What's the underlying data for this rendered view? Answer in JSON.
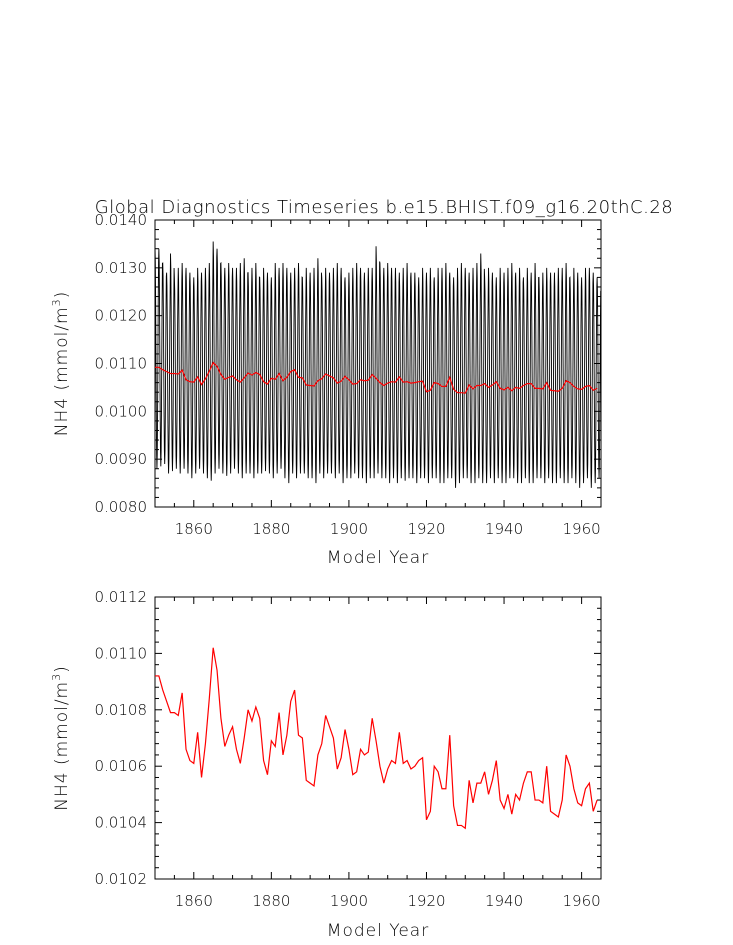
{
  "title": "Global Diagnostics Timeseries b.e15.BHIST.f09_g16.20thC.28",
  "chart_data": [
    {
      "type": "line",
      "xlabel": "Model Year",
      "ylabel_main": "NH4 (mmol/m",
      "ylabel_sup": "3",
      "ylabel_end": ")",
      "xlim": [
        1850,
        1965
      ],
      "ylim": [
        0.008,
        0.014
      ],
      "xticks": [
        "1860",
        "1880",
        "1900",
        "1920",
        "1940",
        "1960"
      ],
      "xtick_values": [
        1860,
        1880,
        1900,
        1920,
        1940,
        1960
      ],
      "yticks": [
        "0.0080",
        "0.0090",
        "0.0100",
        "0.0110",
        "0.0120",
        "0.0130",
        "0.0140"
      ],
      "ytick_values": [
        0.008,
        0.009,
        0.01,
        0.011,
        0.012,
        0.013,
        0.014
      ],
      "series": [
        {
          "kind": "monthly",
          "color": "#000000",
          "start_year": 1850,
          "annual_max": [
            0.01345,
            0.0134,
            0.0131,
            0.0129,
            0.0133,
            0.0128,
            0.013,
            0.0131,
            0.013,
            0.0129,
            0.0128,
            0.013,
            0.0129,
            0.013,
            0.0131,
            0.01355,
            0.0134,
            0.0131,
            0.013,
            0.0131,
            0.013,
            0.013,
            0.0131,
            0.0132,
            0.0129,
            0.013,
            0.0131,
            0.0128,
            0.013,
            0.0129,
            0.0128,
            0.0131,
            0.013,
            0.0131,
            0.013,
            0.0129,
            0.013,
            0.0131,
            0.0128,
            0.013,
            0.0129,
            0.013,
            0.0132,
            0.0128,
            0.013,
            0.0129,
            0.013,
            0.0131,
            0.013,
            0.0128,
            0.0129,
            0.013,
            0.0131,
            0.013,
            0.0129,
            0.013,
            0.013,
            0.01345,
            0.0131,
            0.013,
            0.0131,
            0.013,
            0.013,
            0.0129,
            0.013,
            0.0131,
            0.0129,
            0.0129,
            0.0128,
            0.013,
            0.0129,
            0.013,
            0.0128,
            0.013,
            0.013,
            0.0131,
            0.0129,
            0.0128,
            0.013,
            0.0131,
            0.013,
            0.0129,
            0.013,
            0.0131,
            0.0133,
            0.0128,
            0.013,
            0.0129,
            0.0128,
            0.013,
            0.0129,
            0.013,
            0.0131,
            0.0129,
            0.013,
            0.0128,
            0.013,
            0.0129,
            0.0131,
            0.0128,
            0.0129,
            0.013,
            0.0129,
            0.0129,
            0.013,
            0.013,
            0.0131,
            0.0128,
            0.013,
            0.0129,
            0.0128,
            0.013,
            0.013,
            0.0129,
            0.0128
          ],
          "annual_min": [
            0.0088,
            0.00885,
            0.0089,
            0.0087,
            0.00875,
            0.0088,
            0.0087,
            0.0088,
            0.0087,
            0.0086,
            0.0087,
            0.0088,
            0.0087,
            0.0086,
            0.00855,
            0.0087,
            0.0088,
            0.0087,
            0.00865,
            0.0087,
            0.0088,
            0.0087,
            0.0086,
            0.0087,
            0.0087,
            0.0086,
            0.0087,
            0.0087,
            0.00875,
            0.0087,
            0.0086,
            0.0087,
            0.0088,
            0.0086,
            0.0085,
            0.0087,
            0.0086,
            0.0087,
            0.0087,
            0.0086,
            0.0086,
            0.0085,
            0.0087,
            0.0086,
            0.0087,
            0.0087,
            0.0086,
            0.0087,
            0.0085,
            0.0086,
            0.0086,
            0.0087,
            0.0086,
            0.0086,
            0.0085,
            0.0086,
            0.0086,
            0.0087,
            0.0086,
            0.0086,
            0.0085,
            0.0086,
            0.0085,
            0.0086,
            0.00855,
            0.0086,
            0.0086,
            0.0085,
            0.0086,
            0.0086,
            0.0085,
            0.0086,
            0.0086,
            0.0085,
            0.0085,
            0.0086,
            0.0086,
            0.0084,
            0.0085,
            0.0086,
            0.0086,
            0.0085,
            0.0085,
            0.0086,
            0.0085,
            0.0085,
            0.0086,
            0.0085,
            0.0086,
            0.0085,
            0.0085,
            0.0086,
            0.0086,
            0.0085,
            0.0085,
            0.0086,
            0.0085,
            0.0085,
            0.0086,
            0.0086,
            0.0085,
            0.0086,
            0.0085,
            0.0085,
            0.0086,
            0.0085,
            0.0085,
            0.0086,
            0.0085,
            0.0084,
            0.0085,
            0.0086,
            0.0084,
            0.0085,
            0.0086
          ]
        },
        {
          "kind": "annual",
          "color": "#ff0000",
          "x": [
            1850,
            1851,
            1852,
            1853,
            1854,
            1855,
            1856,
            1857,
            1858,
            1859,
            1860,
            1861,
            1862,
            1863,
            1864,
            1865,
            1866,
            1867,
            1868,
            1869,
            1870,
            1871,
            1872,
            1873,
            1874,
            1875,
            1876,
            1877,
            1878,
            1879,
            1880,
            1881,
            1882,
            1883,
            1884,
            1885,
            1886,
            1887,
            1888,
            1889,
            1890,
            1891,
            1892,
            1893,
            1894,
            1895,
            1896,
            1897,
            1898,
            1899,
            1900,
            1901,
            1902,
            1903,
            1904,
            1905,
            1906,
            1907,
            1908,
            1909,
            1910,
            1911,
            1912,
            1913,
            1914,
            1915,
            1916,
            1917,
            1918,
            1919,
            1920,
            1921,
            1922,
            1923,
            1924,
            1925,
            1926,
            1927,
            1928,
            1929,
            1930,
            1931,
            1932,
            1933,
            1934,
            1935,
            1936,
            1937,
            1938,
            1939,
            1940,
            1941,
            1942,
            1943,
            1944,
            1945,
            1946,
            1947,
            1948,
            1949,
            1950,
            1951,
            1952,
            1953,
            1954,
            1955,
            1956,
            1957,
            1958,
            1959,
            1960,
            1961,
            1962,
            1963,
            1964
          ],
          "y": [
            0.01092,
            0.01092,
            0.01087,
            0.01083,
            0.01079,
            0.01079,
            0.01078,
            0.01086,
            0.01066,
            0.01062,
            0.01061,
            0.01072,
            0.01056,
            0.01068,
            0.01084,
            0.01102,
            0.01094,
            0.01077,
            0.01067,
            0.01071,
            0.01074,
            0.01066,
            0.01061,
            0.0107,
            0.0108,
            0.01076,
            0.01081,
            0.01077,
            0.01062,
            0.01057,
            0.01069,
            0.01067,
            0.01079,
            0.01064,
            0.01071,
            0.01083,
            0.01087,
            0.01071,
            0.0107,
            0.01055,
            0.01054,
            0.01053,
            0.01064,
            0.01068,
            0.01078,
            0.01074,
            0.0107,
            0.01059,
            0.01063,
            0.01073,
            0.01066,
            0.01057,
            0.01058,
            0.01066,
            0.01064,
            0.01065,
            0.01077,
            0.01069,
            0.0106,
            0.01054,
            0.01059,
            0.01062,
            0.01061,
            0.01072,
            0.01061,
            0.01062,
            0.01059,
            0.0106,
            0.01062,
            0.01063,
            0.01041,
            0.01044,
            0.0106,
            0.01058,
            0.01052,
            0.01052,
            0.01071,
            0.01046,
            0.01039,
            0.01039,
            0.01038,
            0.01055,
            0.01047,
            0.01054,
            0.01054,
            0.01058,
            0.0105,
            0.01055,
            0.01062,
            0.01048,
            0.01045,
            0.0105,
            0.01043,
            0.0105,
            0.01048,
            0.01054,
            0.01058,
            0.01058,
            0.01048,
            0.01048,
            0.01047,
            0.0106,
            0.01044,
            0.01043,
            0.01042,
            0.01048,
            0.01064,
            0.0106,
            0.01052,
            0.01047,
            0.01046,
            0.01052,
            0.01054,
            0.01044,
            0.01048
          ]
        }
      ]
    },
    {
      "type": "line",
      "xlabel": "Model Year",
      "ylabel_main": "NH4 (mmol/m",
      "ylabel_sup": "3",
      "ylabel_end": ")",
      "xlim": [
        1850,
        1965
      ],
      "ylim": [
        0.0102,
        0.0112
      ],
      "xticks": [
        "1860",
        "1880",
        "1900",
        "1920",
        "1940",
        "1960"
      ],
      "xtick_values": [
        1860,
        1880,
        1900,
        1920,
        1940,
        1960
      ],
      "yticks": [
        "0.0102",
        "0.0104",
        "0.0106",
        "0.0108",
        "0.0110",
        "0.0112"
      ],
      "ytick_values": [
        0.0102,
        0.0104,
        0.0106,
        0.0108,
        0.011,
        0.0112
      ],
      "series": [
        {
          "kind": "annual",
          "color": "#ff0000",
          "x": [
            1850,
            1851,
            1852,
            1853,
            1854,
            1855,
            1856,
            1857,
            1858,
            1859,
            1860,
            1861,
            1862,
            1863,
            1864,
            1865,
            1866,
            1867,
            1868,
            1869,
            1870,
            1871,
            1872,
            1873,
            1874,
            1875,
            1876,
            1877,
            1878,
            1879,
            1880,
            1881,
            1882,
            1883,
            1884,
            1885,
            1886,
            1887,
            1888,
            1889,
            1890,
            1891,
            1892,
            1893,
            1894,
            1895,
            1896,
            1897,
            1898,
            1899,
            1900,
            1901,
            1902,
            1903,
            1904,
            1905,
            1906,
            1907,
            1908,
            1909,
            1910,
            1911,
            1912,
            1913,
            1914,
            1915,
            1916,
            1917,
            1918,
            1919,
            1920,
            1921,
            1922,
            1923,
            1924,
            1925,
            1926,
            1927,
            1928,
            1929,
            1930,
            1931,
            1932,
            1933,
            1934,
            1935,
            1936,
            1937,
            1938,
            1939,
            1940,
            1941,
            1942,
            1943,
            1944,
            1945,
            1946,
            1947,
            1948,
            1949,
            1950,
            1951,
            1952,
            1953,
            1954,
            1955,
            1956,
            1957,
            1958,
            1959,
            1960,
            1961,
            1962,
            1963,
            1964
          ],
          "y": [
            0.01092,
            0.01092,
            0.01087,
            0.01083,
            0.01079,
            0.01079,
            0.01078,
            0.01086,
            0.01066,
            0.01062,
            0.01061,
            0.01072,
            0.01056,
            0.01068,
            0.01084,
            0.01102,
            0.01094,
            0.01077,
            0.01067,
            0.01071,
            0.01074,
            0.01066,
            0.01061,
            0.0107,
            0.0108,
            0.01076,
            0.01081,
            0.01077,
            0.01062,
            0.01057,
            0.01069,
            0.01067,
            0.01079,
            0.01064,
            0.01071,
            0.01083,
            0.01087,
            0.01071,
            0.0107,
            0.01055,
            0.01054,
            0.01053,
            0.01064,
            0.01068,
            0.01078,
            0.01074,
            0.0107,
            0.01059,
            0.01063,
            0.01073,
            0.01066,
            0.01057,
            0.01058,
            0.01066,
            0.01064,
            0.01065,
            0.01077,
            0.01069,
            0.0106,
            0.01054,
            0.01059,
            0.01062,
            0.01061,
            0.01072,
            0.01061,
            0.01062,
            0.01059,
            0.0106,
            0.01062,
            0.01063,
            0.01041,
            0.01044,
            0.0106,
            0.01058,
            0.01052,
            0.01052,
            0.01071,
            0.01046,
            0.01039,
            0.01039,
            0.01038,
            0.01055,
            0.01047,
            0.01054,
            0.01054,
            0.01058,
            0.0105,
            0.01055,
            0.01062,
            0.01048,
            0.01045,
            0.0105,
            0.01043,
            0.0105,
            0.01048,
            0.01054,
            0.01058,
            0.01058,
            0.01048,
            0.01048,
            0.01047,
            0.0106,
            0.01044,
            0.01043,
            0.01042,
            0.01048,
            0.01064,
            0.0106,
            0.01052,
            0.01047,
            0.01046,
            0.01052,
            0.01054,
            0.01044,
            0.01048
          ]
        }
      ]
    }
  ]
}
